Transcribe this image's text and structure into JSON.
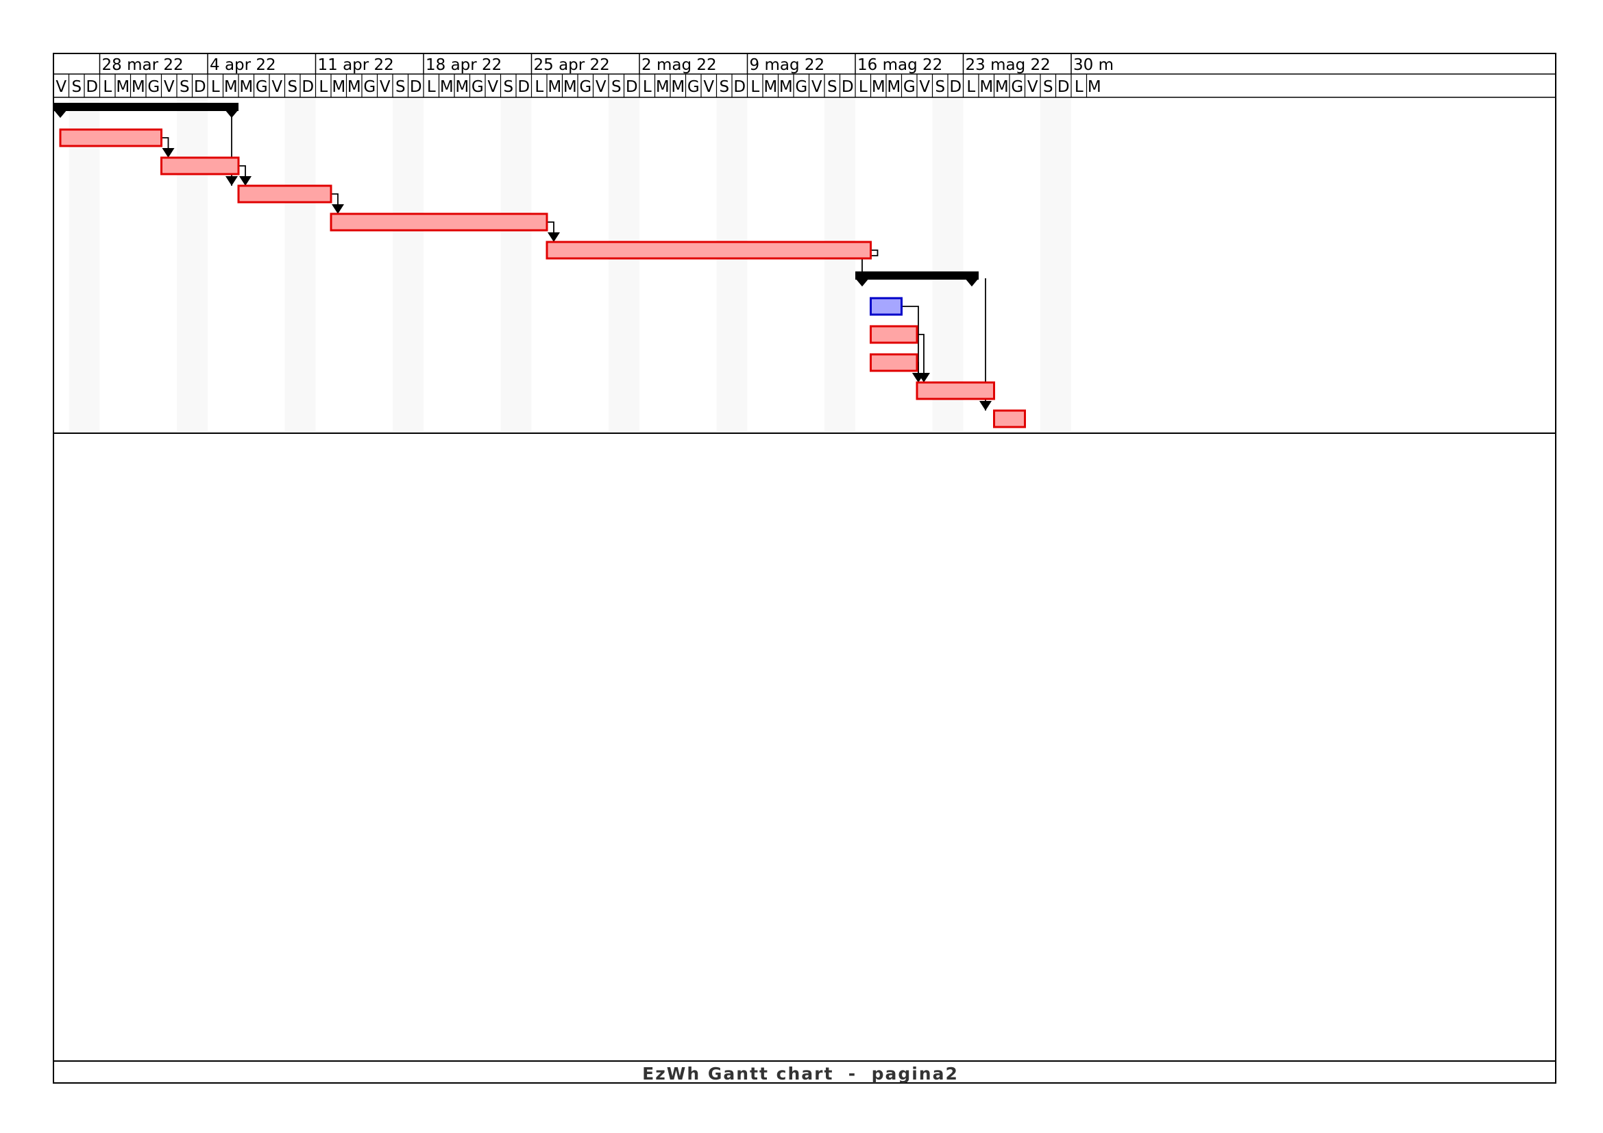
{
  "chart_data": {
    "type": "gantt",
    "start_date": "2022-03-25",
    "days_shown": 68,
    "week_labels": [
      "28 mar 22",
      "4 apr 22",
      "11 apr 22",
      "18 apr 22",
      "25 apr 22",
      "2 mag 22",
      "9 mag 22",
      "16 mag 22",
      "23 mag 22",
      "30 m"
    ],
    "day_letters": [
      "V",
      "S",
      "D",
      "L",
      "M",
      "M",
      "G",
      "V",
      "S",
      "D",
      "L",
      "M",
      "M",
      "G",
      "V",
      "S",
      "D",
      "L",
      "M",
      "M",
      "G",
      "V",
      "S",
      "D",
      "L",
      "M",
      "M",
      "G",
      "V",
      "S",
      "D",
      "L",
      "M",
      "M",
      "G",
      "V",
      "S",
      "D",
      "L",
      "M",
      "M",
      "G",
      "V",
      "S",
      "D",
      "L",
      "M",
      "M",
      "G",
      "V",
      "S",
      "D",
      "L",
      "M",
      "M",
      "G",
      "V",
      "S",
      "D",
      "L",
      "M",
      "M",
      "G",
      "V",
      "S",
      "D",
      "L",
      "M"
    ],
    "summaries": [
      {
        "start": "2022-03-25",
        "end": "2022-04-06"
      },
      {
        "start": "2022-05-16",
        "end": "2022-05-24"
      }
    ],
    "tasks": [
      {
        "start": "2022-03-25",
        "end": "2022-04-01",
        "color": "red"
      },
      {
        "start": "2022-04-01",
        "end": "2022-04-06",
        "color": "red"
      },
      {
        "start": "2022-04-06",
        "end": "2022-04-12",
        "color": "red"
      },
      {
        "start": "2022-04-12",
        "end": "2022-04-26",
        "color": "red"
      },
      {
        "start": "2022-04-26",
        "end": "2022-05-17",
        "color": "red"
      },
      {
        "start": "2022-05-17",
        "end": "2022-05-19",
        "color": "blue"
      },
      {
        "start": "2022-05-17",
        "end": "2022-05-20",
        "color": "red"
      },
      {
        "start": "2022-05-17",
        "end": "2022-05-20",
        "color": "red"
      },
      {
        "start": "2022-05-20",
        "end": "2022-05-25",
        "color": "red"
      },
      {
        "start": "2022-05-25",
        "end": "2022-05-27",
        "color": "red"
      }
    ],
    "colors": {
      "task_fill": "#ffa5a5",
      "task_stroke": "#e00000",
      "milestone_fill": "#a6a6ff",
      "milestone_stroke": "#0000c8",
      "summary": "#000000",
      "weekend_shade": "#f8f8f8"
    }
  },
  "footer": {
    "title": "EzWh Gantt chart  -  pagina2"
  }
}
